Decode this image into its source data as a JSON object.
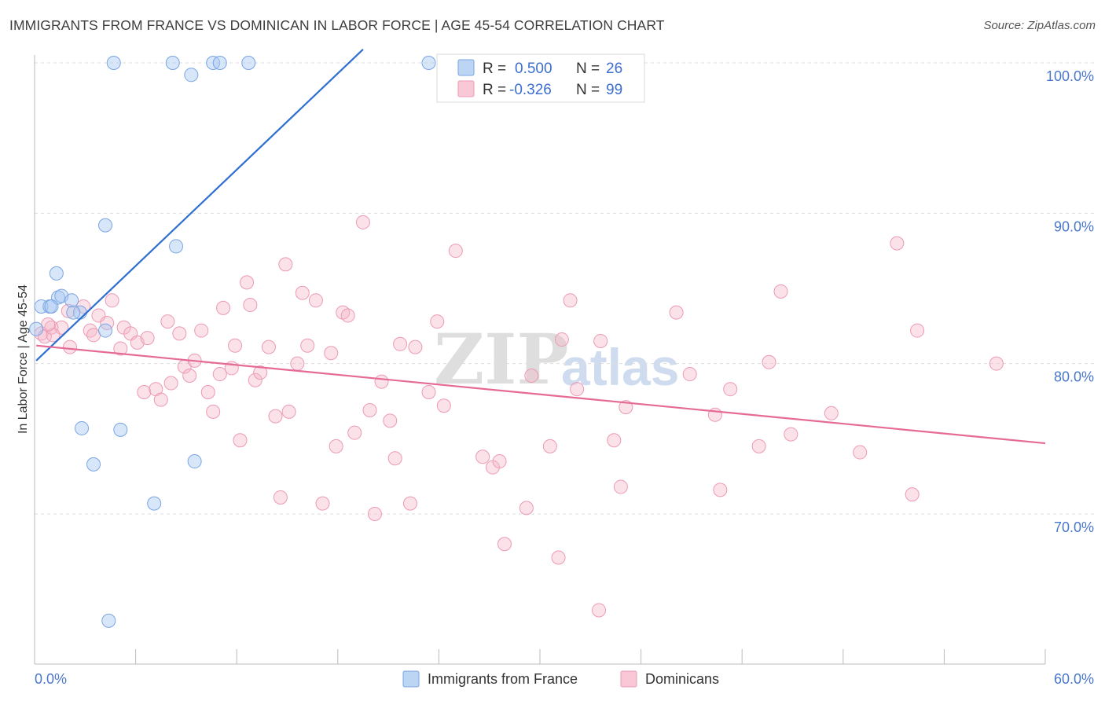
{
  "title": "IMMIGRANTS FROM FRANCE VS DOMINICAN IN LABOR FORCE | AGE 45-54 CORRELATION CHART",
  "source": "Source: ZipAtlas.com",
  "watermark": {
    "part1": "ZIP",
    "part2": "atlas"
  },
  "legend": {
    "r_label": "R =",
    "n_label": "N =",
    "rows": [
      {
        "r": "0.500",
        "n": "26"
      },
      {
        "r": "-0.326",
        "n": "99"
      }
    ]
  },
  "chart_data": {
    "type": "scatter",
    "title": "IMMIGRANTS FROM FRANCE VS DOMINICAN IN LABOR FORCE | AGE 45-54 CORRELATION CHART",
    "xlabel": "",
    "ylabel": "In Labor Force | Age 45-54",
    "xlim": [
      0,
      60
    ],
    "ylim": [
      61,
      101
    ],
    "x_tick_labels": [
      "0.0%",
      "60.0%"
    ],
    "y_ticks": [
      70,
      80,
      90,
      100
    ],
    "y_tick_labels": [
      "70.0%",
      "80.0%",
      "90.0%",
      "100.0%"
    ],
    "grid": "horizontal dashed",
    "legend_position": "top-center",
    "colors": {
      "france": "#a9c8f2",
      "france_line": "#2f6fd1",
      "dominican": "#f5b6c9",
      "dominican_line": "#e56b96"
    },
    "series": [
      {
        "name": "Immigrants from France",
        "r": 0.5,
        "n": 26,
        "trend": {
          "x0": 0.1,
          "y0": 80.2,
          "x1": 19.5,
          "y1": 100.9
        },
        "points": [
          [
            0.1,
            82.3
          ],
          [
            0.4,
            83.8
          ],
          [
            0.9,
            83.8
          ],
          [
            1.4,
            84.4
          ],
          [
            1.6,
            84.5
          ],
          [
            1.3,
            86.0
          ],
          [
            2.2,
            84.2
          ],
          [
            2.7,
            83.4
          ],
          [
            4.2,
            89.2
          ],
          [
            4.2,
            82.2
          ],
          [
            4.7,
            100.0
          ],
          [
            8.2,
            100.0
          ],
          [
            9.3,
            99.2
          ],
          [
            10.6,
            100.0
          ],
          [
            11.0,
            100.0
          ],
          [
            12.7,
            100.0
          ],
          [
            23.4,
            100.0
          ],
          [
            8.4,
            87.8
          ],
          [
            2.8,
            75.7
          ],
          [
            5.1,
            75.6
          ],
          [
            3.5,
            73.3
          ],
          [
            9.5,
            73.5
          ],
          [
            7.1,
            70.7
          ],
          [
            4.4,
            62.9
          ],
          [
            1.0,
            83.8
          ],
          [
            2.3,
            83.4
          ]
        ]
      },
      {
        "name": "Dominicans",
        "r": -0.326,
        "n": 99,
        "trend": {
          "x0": 0.1,
          "y0": 81.2,
          "x1": 60.0,
          "y1": 74.7
        },
        "points": [
          [
            0.4,
            82.0
          ],
          [
            0.6,
            81.8
          ],
          [
            1.0,
            82.4
          ],
          [
            1.6,
            82.4
          ],
          [
            2.0,
            83.5
          ],
          [
            2.1,
            81.1
          ],
          [
            2.9,
            83.8
          ],
          [
            3.3,
            82.2
          ],
          [
            3.5,
            81.9
          ],
          [
            3.8,
            83.2
          ],
          [
            4.3,
            82.7
          ],
          [
            4.6,
            84.2
          ],
          [
            5.1,
            81.0
          ],
          [
            5.3,
            82.4
          ],
          [
            5.7,
            82.0
          ],
          [
            6.1,
            81.4
          ],
          [
            6.5,
            78.1
          ],
          [
            6.7,
            81.7
          ],
          [
            7.2,
            78.3
          ],
          [
            7.5,
            77.6
          ],
          [
            7.9,
            82.8
          ],
          [
            8.1,
            78.7
          ],
          [
            8.6,
            82.0
          ],
          [
            8.9,
            79.8
          ],
          [
            9.2,
            79.2
          ],
          [
            9.5,
            80.2
          ],
          [
            9.9,
            82.2
          ],
          [
            10.3,
            78.1
          ],
          [
            10.6,
            76.8
          ],
          [
            11.0,
            79.3
          ],
          [
            11.2,
            83.7
          ],
          [
            11.7,
            79.7
          ],
          [
            11.9,
            81.2
          ],
          [
            12.2,
            74.9
          ],
          [
            12.6,
            85.4
          ],
          [
            12.8,
            83.9
          ],
          [
            13.1,
            78.9
          ],
          [
            13.4,
            79.4
          ],
          [
            13.9,
            81.1
          ],
          [
            14.3,
            76.5
          ],
          [
            14.6,
            71.1
          ],
          [
            14.9,
            86.6
          ],
          [
            15.1,
            76.8
          ],
          [
            15.6,
            80.0
          ],
          [
            15.9,
            84.7
          ],
          [
            16.2,
            81.2
          ],
          [
            16.7,
            84.2
          ],
          [
            17.1,
            70.7
          ],
          [
            17.6,
            80.7
          ],
          [
            17.9,
            74.5
          ],
          [
            18.3,
            83.4
          ],
          [
            18.6,
            83.2
          ],
          [
            19.0,
            75.4
          ],
          [
            19.5,
            89.4
          ],
          [
            19.9,
            76.9
          ],
          [
            20.2,
            70.0
          ],
          [
            20.6,
            78.8
          ],
          [
            21.1,
            76.2
          ],
          [
            21.4,
            73.7
          ],
          [
            21.7,
            81.3
          ],
          [
            22.3,
            70.7
          ],
          [
            22.6,
            81.1
          ],
          [
            23.4,
            78.1
          ],
          [
            23.9,
            82.8
          ],
          [
            24.3,
            77.2
          ],
          [
            25.0,
            87.5
          ],
          [
            26.6,
            73.8
          ],
          [
            27.2,
            73.1
          ],
          [
            27.6,
            73.5
          ],
          [
            27.9,
            68.0
          ],
          [
            29.2,
            70.4
          ],
          [
            29.5,
            79.2
          ],
          [
            30.6,
            74.5
          ],
          [
            31.1,
            67.1
          ],
          [
            31.3,
            81.6
          ],
          [
            31.8,
            84.2
          ],
          [
            32.2,
            78.3
          ],
          [
            33.5,
            63.6
          ],
          [
            33.6,
            81.5
          ],
          [
            34.4,
            74.9
          ],
          [
            34.8,
            71.8
          ],
          [
            35.1,
            77.1
          ],
          [
            38.1,
            83.4
          ],
          [
            38.9,
            79.3
          ],
          [
            40.4,
            76.6
          ],
          [
            40.7,
            71.6
          ],
          [
            41.3,
            78.3
          ],
          [
            43.0,
            74.5
          ],
          [
            43.6,
            80.1
          ],
          [
            44.3,
            84.8
          ],
          [
            44.9,
            75.3
          ],
          [
            47.3,
            76.7
          ],
          [
            49.0,
            74.1
          ],
          [
            51.2,
            88.0
          ],
          [
            52.1,
            71.3
          ],
          [
            52.4,
            82.2
          ],
          [
            57.1,
            80.0
          ],
          [
            1.1,
            81.9
          ],
          [
            0.8,
            82.6
          ]
        ]
      }
    ]
  }
}
